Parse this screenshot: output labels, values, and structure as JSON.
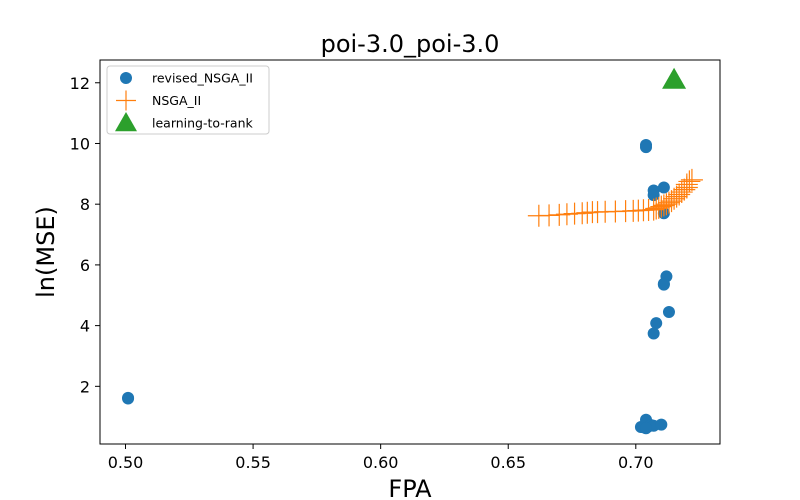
{
  "chart_data": {
    "type": "scatter",
    "title": "poi-3.0_poi-3.0",
    "xlabel": "FPA",
    "ylabel": "ln(MSE)",
    "xlim": [
      0.49,
      0.733
    ],
    "ylim": [
      0.1,
      12.75
    ],
    "xticks": [
      0.5,
      0.55,
      0.6,
      0.65,
      0.7
    ],
    "xtick_labels": [
      "0.50",
      "0.55",
      "0.60",
      "0.65",
      "0.70"
    ],
    "yticks": [
      2,
      4,
      6,
      8,
      10,
      12
    ],
    "ytick_labels": [
      "2",
      "4",
      "6",
      "8",
      "10",
      "12"
    ],
    "grid": false,
    "legend": "top-left",
    "series": [
      {
        "name": "revised_NSGA_II",
        "marker": "circle",
        "color": "#1f77b4",
        "points": [
          [
            0.501,
            1.62
          ],
          [
            0.501,
            1.6
          ],
          [
            0.704,
            9.95
          ],
          [
            0.704,
            9.88
          ],
          [
            0.707,
            8.45
          ],
          [
            0.707,
            8.3
          ],
          [
            0.711,
            8.55
          ],
          [
            0.711,
            7.7
          ],
          [
            0.712,
            5.62
          ],
          [
            0.711,
            5.38
          ],
          [
            0.711,
            5.35
          ],
          [
            0.713,
            4.45
          ],
          [
            0.708,
            4.08
          ],
          [
            0.707,
            3.74
          ],
          [
            0.702,
            0.66
          ],
          [
            0.703,
            0.65
          ],
          [
            0.704,
            0.9
          ],
          [
            0.705,
            0.68
          ],
          [
            0.706,
            0.72
          ],
          [
            0.707,
            0.7
          ],
          [
            0.71,
            0.74
          ],
          [
            0.704,
            0.62
          ]
        ]
      },
      {
        "name": "NSGA_II",
        "marker": "plus",
        "color": "#ff7f0e",
        "points": [
          [
            0.662,
            7.62
          ],
          [
            0.666,
            7.63
          ],
          [
            0.67,
            7.65
          ],
          [
            0.673,
            7.67
          ],
          [
            0.676,
            7.69
          ],
          [
            0.679,
            7.7
          ],
          [
            0.681,
            7.72
          ],
          [
            0.683,
            7.74
          ],
          [
            0.685,
            7.74
          ],
          [
            0.688,
            7.75
          ],
          [
            0.692,
            7.76
          ],
          [
            0.696,
            7.77
          ],
          [
            0.699,
            7.78
          ],
          [
            0.701,
            7.79
          ],
          [
            0.703,
            7.8
          ],
          [
            0.705,
            7.81
          ],
          [
            0.707,
            7.82
          ],
          [
            0.708,
            7.86
          ],
          [
            0.709,
            7.88
          ],
          [
            0.71,
            7.92
          ],
          [
            0.711,
            7.96
          ],
          [
            0.712,
            8.0
          ],
          [
            0.713,
            8.05
          ],
          [
            0.714,
            8.1
          ],
          [
            0.715,
            8.18
          ],
          [
            0.716,
            8.25
          ],
          [
            0.717,
            8.32
          ],
          [
            0.718,
            8.4
          ],
          [
            0.719,
            8.48
          ],
          [
            0.72,
            8.55
          ],
          [
            0.72,
            8.65
          ],
          [
            0.721,
            8.75
          ],
          [
            0.722,
            8.8
          ]
        ]
      },
      {
        "name": "learning-to-rank",
        "marker": "triangle",
        "color": "#2ca02c",
        "points": [
          [
            0.715,
            12.1
          ]
        ]
      }
    ]
  }
}
